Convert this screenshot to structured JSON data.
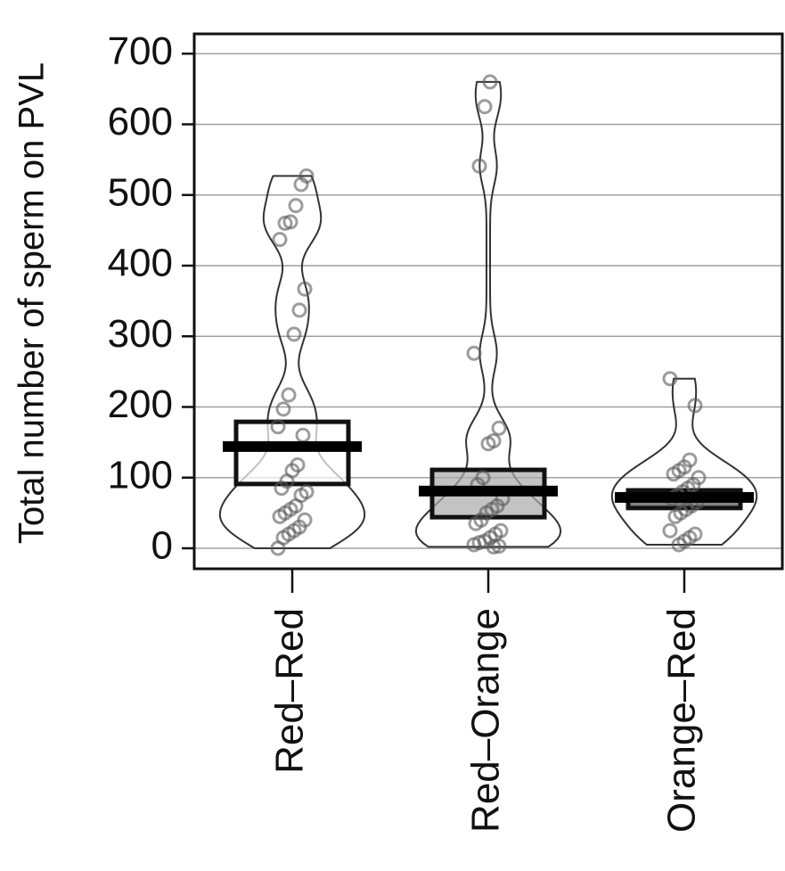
{
  "chart_data": {
    "type": "pirate",
    "y_label": "Total number of sperm on PVL",
    "categories": [
      "Red–Red",
      "Red–Orange",
      "Orange–Red"
    ],
    "means": [
      144,
      81,
      72
    ],
    "box_lower": [
      91,
      44,
      57
    ],
    "box_upper": [
      179,
      111,
      82
    ],
    "box_fills": [
      "#ffffff",
      "#a9a9a9",
      "#4d4d4d"
    ],
    "points": [
      [
        0,
        15,
        20,
        25,
        30,
        40,
        45,
        50,
        55,
        60,
        75,
        80,
        85,
        95,
        110,
        118,
        160,
        172,
        197,
        217,
        303,
        337,
        367,
        437,
        460,
        462,
        485,
        515,
        527
      ],
      [
        2,
        3,
        5,
        8,
        10,
        15,
        20,
        25,
        35,
        40,
        50,
        55,
        60,
        70,
        90,
        100,
        148,
        152,
        170,
        276,
        541,
        625,
        660
      ],
      [
        5,
        10,
        15,
        20,
        25,
        45,
        50,
        55,
        60,
        65,
        70,
        75,
        80,
        85,
        90,
        100,
        105,
        110,
        115,
        125,
        202,
        240
      ]
    ],
    "ylim": [
      -29,
      728
    ],
    "yticks": [
      0,
      100,
      200,
      300,
      400,
      500,
      600,
      700
    ],
    "grid": true
  }
}
